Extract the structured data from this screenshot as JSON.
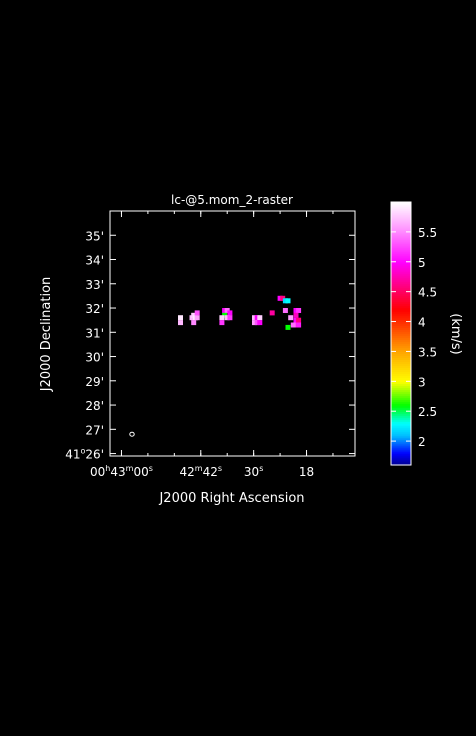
{
  "chart_data": {
    "type": "heatmap",
    "title": "lc-@5.mom_2-raster",
    "xlabel": "J2000 Right Ascension",
    "ylabel": "J2000 Declination",
    "colorbar_label": "(km/s)",
    "x_tick_labels": [
      {
        "ra_sec_from_00h42m": 60,
        "h": "00",
        "hu": "h",
        "m": "43",
        "mu": "m",
        "s": "00",
        "su": "s"
      },
      {
        "ra_sec_from_00h42m": 42,
        "h": "",
        "hu": "",
        "m": "42",
        "mu": "m",
        "s": "42",
        "su": "s"
      },
      {
        "ra_sec_from_00h42m": 30,
        "h": "",
        "hu": "",
        "m": "",
        "mu": "",
        "s": "30",
        "su": "s"
      },
      {
        "ra_sec_from_00h42m": 18,
        "h": "",
        "hu": "",
        "m": "",
        "mu": "",
        "s": "18",
        "su": ""
      }
    ],
    "y_tick_labels": [
      {
        "dec_arcmin_from_41d": 26,
        "deg": "41",
        "degu": "o",
        "text": "26'"
      },
      {
        "dec_arcmin_from_41d": 27,
        "deg": "",
        "degu": "",
        "text": "27'"
      },
      {
        "dec_arcmin_from_41d": 28,
        "deg": "",
        "degu": "",
        "text": "28'"
      },
      {
        "dec_arcmin_from_41d": 29,
        "deg": "",
        "degu": "",
        "text": "29'"
      },
      {
        "dec_arcmin_from_41d": 30,
        "deg": "",
        "degu": "",
        "text": "30'"
      },
      {
        "dec_arcmin_from_41d": 31,
        "deg": "",
        "degu": "",
        "text": "31'"
      },
      {
        "dec_arcmin_from_41d": 32,
        "deg": "",
        "degu": "",
        "text": "32'"
      },
      {
        "dec_arcmin_from_41d": 33,
        "deg": "",
        "degu": "",
        "text": "33'"
      },
      {
        "dec_arcmin_from_41d": 34,
        "deg": "",
        "degu": "",
        "text": "34'"
      },
      {
        "dec_arcmin_from_41d": 35,
        "deg": "",
        "degu": "",
        "text": "35'"
      }
    ],
    "xlim_ra_sec_from_00h42m": [
      62.6,
      7.0
    ],
    "ylim_dec_arcmin_from_41d": [
      25.9,
      36.0
    ],
    "colorbar_range": [
      1.6,
      6.0
    ],
    "colorbar_ticks": [
      {
        "value": 2,
        "text": "2"
      },
      {
        "value": 2.5,
        "text": "2.5"
      },
      {
        "value": 3,
        "text": "3"
      },
      {
        "value": 3.5,
        "text": "3.5"
      },
      {
        "value": 4,
        "text": "4"
      },
      {
        "value": 4.5,
        "text": "4.5"
      },
      {
        "value": 5,
        "text": "5"
      },
      {
        "value": 5.5,
        "text": "5.5"
      }
    ],
    "colormap_stops": [
      {
        "value": 1.6,
        "color": "#00008b"
      },
      {
        "value": 1.8,
        "color": "#0000ff"
      },
      {
        "value": 2.1,
        "color": "#00bfff"
      },
      {
        "value": 2.3,
        "color": "#00ffff"
      },
      {
        "value": 2.6,
        "color": "#00ff00"
      },
      {
        "value": 3.0,
        "color": "#ffff00"
      },
      {
        "value": 3.5,
        "color": "#ffa500"
      },
      {
        "value": 3.9,
        "color": "#ff4500"
      },
      {
        "value": 4.2,
        "color": "#ff0000"
      },
      {
        "value": 4.6,
        "color": "#ff0080"
      },
      {
        "value": 5.0,
        "color": "#ff00ff"
      },
      {
        "value": 5.5,
        "color": "#ff88ff"
      },
      {
        "value": 6.0,
        "color": "#ffffff"
      }
    ],
    "pixels": [
      {
        "ra": 44.0,
        "dec": 31.6,
        "v": 5.7
      },
      {
        "ra": 43.6,
        "dec": 31.7,
        "v": 5.8
      },
      {
        "ra": 43.2,
        "dec": 31.6,
        "v": 5.9
      },
      {
        "ra": 42.8,
        "dec": 31.6,
        "v": 5.6
      },
      {
        "ra": 43.6,
        "dec": 31.4,
        "v": 5.5
      },
      {
        "ra": 42.8,
        "dec": 31.8,
        "v": 5.3
      },
      {
        "ra": 46.6,
        "dec": 31.6,
        "v": 5.9
      },
      {
        "ra": 46.6,
        "dec": 31.4,
        "v": 5.7
      },
      {
        "ra": 36.6,
        "dec": 31.9,
        "v": 5.0
      },
      {
        "ra": 36.0,
        "dec": 31.9,
        "v": 5.4
      },
      {
        "ra": 35.4,
        "dec": 31.8,
        "v": 5.0
      },
      {
        "ra": 36.6,
        "dec": 31.7,
        "v": 2.6
      },
      {
        "ra": 37.2,
        "dec": 31.6,
        "v": 5.8
      },
      {
        "ra": 37.2,
        "dec": 31.4,
        "v": 5.2
      },
      {
        "ra": 36.0,
        "dec": 31.6,
        "v": 5.7
      },
      {
        "ra": 35.4,
        "dec": 31.6,
        "v": 5.2
      },
      {
        "ra": 29.8,
        "dec": 31.6,
        "v": 5.7
      },
      {
        "ra": 29.2,
        "dec": 31.6,
        "v": 5.0
      },
      {
        "ra": 28.6,
        "dec": 31.6,
        "v": 5.8
      },
      {
        "ra": 29.8,
        "dec": 31.4,
        "v": 5.6
      },
      {
        "ra": 29.2,
        "dec": 31.4,
        "v": 5.3
      },
      {
        "ra": 28.6,
        "dec": 31.4,
        "v": 5.0
      },
      {
        "ra": 24.0,
        "dec": 32.4,
        "v": 5.0
      },
      {
        "ra": 23.4,
        "dec": 32.4,
        "v": 4.6
      },
      {
        "ra": 22.8,
        "dec": 32.3,
        "v": 2.2
      },
      {
        "ra": 22.2,
        "dec": 32.3,
        "v": 2.3
      },
      {
        "ra": 25.8,
        "dec": 31.8,
        "v": 4.7
      },
      {
        "ra": 22.8,
        "dec": 31.9,
        "v": 5.4
      },
      {
        "ra": 20.4,
        "dec": 31.9,
        "v": 5.0
      },
      {
        "ra": 19.8,
        "dec": 31.9,
        "v": 5.2
      },
      {
        "ra": 20.4,
        "dec": 31.7,
        "v": 4.8
      },
      {
        "ra": 21.6,
        "dec": 31.6,
        "v": 5.6
      },
      {
        "ra": 20.4,
        "dec": 31.5,
        "v": 5.0
      },
      {
        "ra": 19.8,
        "dec": 31.5,
        "v": 4.6
      },
      {
        "ra": 20.4,
        "dec": 31.3,
        "v": 4.8
      },
      {
        "ra": 19.8,
        "dec": 31.3,
        "v": 5.1
      },
      {
        "ra": 22.2,
        "dec": 31.2,
        "v": 2.6
      },
      {
        "ra": 21.0,
        "dec": 31.3,
        "v": 5.4
      }
    ],
    "beam_marker": {
      "ra": 57.6,
      "dec": 26.8
    }
  }
}
